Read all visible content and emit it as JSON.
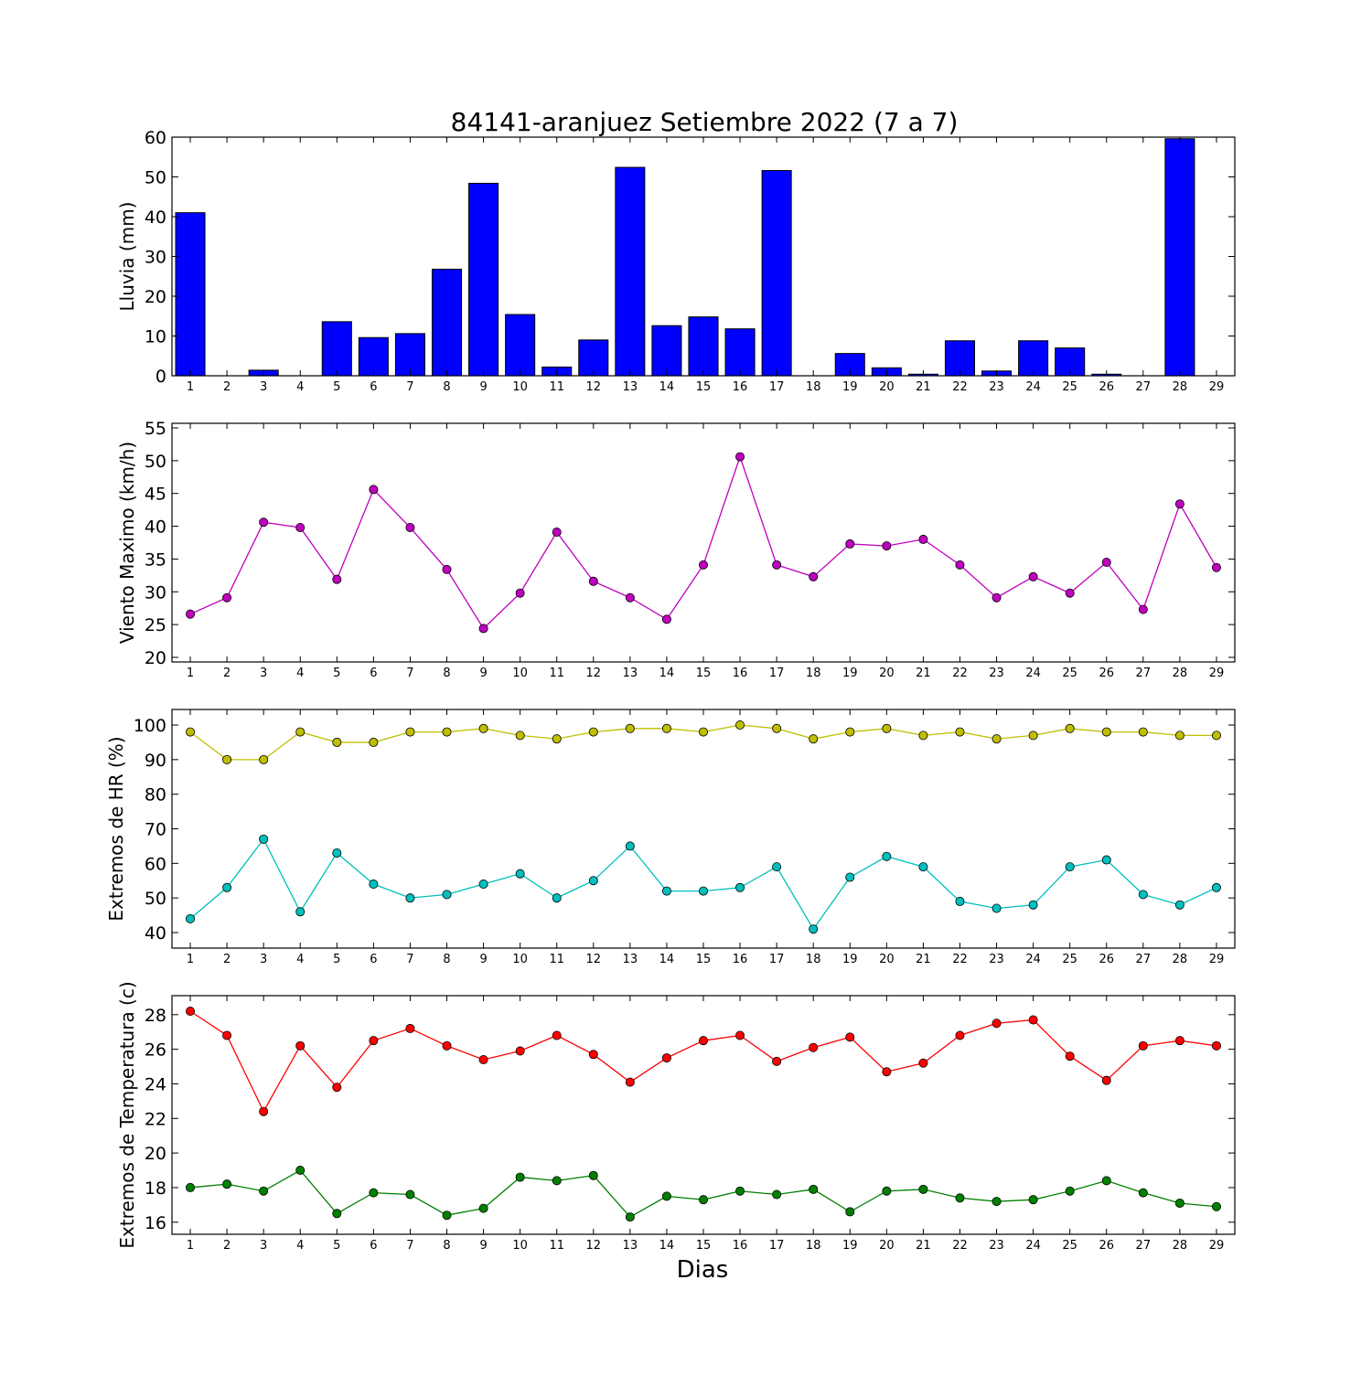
{
  "title": "84141-aranjuez Setiembre 2022  (7 a 7)",
  "xlabel": "Dias",
  "colors": {
    "rain": "#0000ff",
    "wind": "#bf00bf",
    "hr_max": "#bfbf00",
    "hr_min": "#00bfbf",
    "temp_max": "#ff0000",
    "temp_min": "#008000"
  },
  "chart_data": [
    {
      "type": "bar",
      "ylabel": "Lluvia (mm)",
      "x": [
        1,
        2,
        3,
        4,
        5,
        6,
        7,
        8,
        9,
        10,
        11,
        12,
        13,
        14,
        15,
        16,
        17,
        18,
        19,
        20,
        21,
        22,
        23,
        24,
        25,
        26,
        27,
        28,
        29
      ],
      "ylim": [
        0,
        60
      ],
      "yticks": [
        0,
        10,
        20,
        30,
        40,
        50,
        60
      ],
      "grid": false,
      "series": [
        {
          "color": "#0000ff",
          "values": [
            41.0,
            0,
            1.4,
            0,
            13.6,
            9.6,
            10.6,
            26.8,
            48.4,
            15.4,
            2.2,
            9.0,
            52.4,
            12.6,
            14.8,
            11.8,
            51.6,
            0,
            5.6,
            2.0,
            0.4,
            8.8,
            1.2,
            8.8,
            7.0,
            0.4,
            0,
            59.6,
            0
          ]
        }
      ]
    },
    {
      "type": "line",
      "ylabel": "Viento Maximo (km/h)",
      "x": [
        1,
        2,
        3,
        4,
        5,
        6,
        7,
        8,
        9,
        10,
        11,
        12,
        13,
        14,
        15,
        16,
        17,
        18,
        19,
        20,
        21,
        22,
        23,
        24,
        25,
        26,
        27,
        28,
        29
      ],
      "ylim": [
        19.3,
        55.7
      ],
      "yticks": [
        20,
        25,
        30,
        35,
        40,
        45,
        50,
        55
      ],
      "grid": false,
      "series": [
        {
          "color": "#bf00bf",
          "values": [
            26.6,
            29.1,
            40.6,
            39.8,
            31.9,
            45.6,
            39.8,
            33.4,
            24.4,
            29.8,
            39.1,
            31.6,
            29.1,
            25.8,
            34.1,
            50.6,
            34.1,
            32.3,
            37.3,
            37.0,
            38.0,
            34.1,
            29.1,
            32.3,
            29.8,
            34.5,
            27.3,
            43.4,
            33.7
          ]
        }
      ]
    },
    {
      "type": "line",
      "ylabel": "Extremos de HR (%)",
      "x": [
        1,
        2,
        3,
        4,
        5,
        6,
        7,
        8,
        9,
        10,
        11,
        12,
        13,
        14,
        15,
        16,
        17,
        18,
        19,
        20,
        21,
        22,
        23,
        24,
        25,
        26,
        27,
        28,
        29
      ],
      "ylim": [
        35.5,
        104.5
      ],
      "yticks": [
        40,
        50,
        60,
        70,
        80,
        90,
        100
      ],
      "grid": false,
      "series": [
        {
          "color": "#bfbf00",
          "values": [
            98,
            90,
            90,
            98,
            95,
            95,
            98,
            98,
            99,
            97,
            96,
            98,
            99,
            99,
            98,
            100,
            99,
            96,
            98,
            99,
            97,
            98,
            96,
            97,
            99,
            98,
            98,
            97,
            97
          ]
        },
        {
          "color": "#00bfbf",
          "values": [
            44,
            53,
            67,
            46,
            63,
            54,
            50,
            51,
            54,
            57,
            50,
            55,
            65,
            52,
            52,
            53,
            59,
            41,
            56,
            62,
            59,
            49,
            47,
            48,
            59,
            61,
            51,
            48,
            53
          ]
        }
      ]
    },
    {
      "type": "line",
      "ylabel": "Extremos de Temperatura (c)",
      "x": [
        1,
        2,
        3,
        4,
        5,
        6,
        7,
        8,
        9,
        10,
        11,
        12,
        13,
        14,
        15,
        16,
        17,
        18,
        19,
        20,
        21,
        22,
        23,
        24,
        25,
        26,
        27,
        28,
        29
      ],
      "ylim": [
        15.3,
        29.1
      ],
      "yticks": [
        16,
        18,
        20,
        22,
        24,
        26,
        28
      ],
      "grid": false,
      "series": [
        {
          "color": "#ff0000",
          "values": [
            28.2,
            26.8,
            22.4,
            26.2,
            23.8,
            26.5,
            27.2,
            26.2,
            25.4,
            25.9,
            26.8,
            25.7,
            24.1,
            25.5,
            26.5,
            26.8,
            25.3,
            26.1,
            26.7,
            24.7,
            25.2,
            26.8,
            27.5,
            27.7,
            25.6,
            24.2,
            26.2,
            26.5,
            26.2
          ]
        },
        {
          "color": "#008000",
          "values": [
            18.0,
            18.2,
            17.8,
            19.0,
            16.5,
            17.7,
            17.6,
            16.4,
            16.8,
            18.6,
            18.4,
            18.7,
            16.3,
            17.5,
            17.3,
            17.8,
            17.6,
            17.9,
            16.6,
            17.8,
            17.9,
            17.4,
            17.2,
            17.3,
            17.8,
            18.4,
            17.7,
            17.1,
            16.9
          ]
        }
      ]
    }
  ]
}
